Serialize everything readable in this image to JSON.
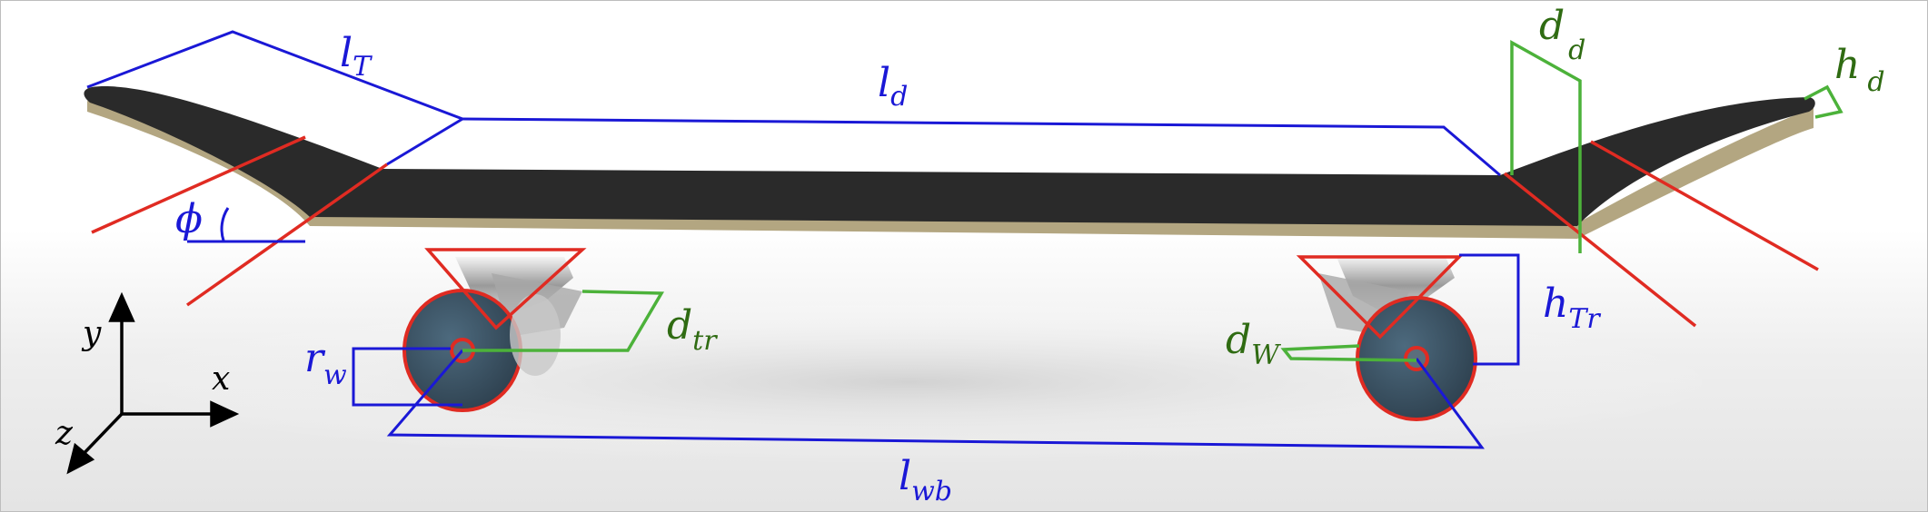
{
  "colors": {
    "blue": "#1a18d6",
    "green": "#4cb23a",
    "green_text": "#2f6b12",
    "red": "#e02b22",
    "deck_top": "#2a2a2a",
    "deck_side": "#b3a681",
    "wheel": "#3d5566",
    "axis": "#000000"
  },
  "labels": {
    "l_T": {
      "main": "l",
      "sub": "T"
    },
    "l_d": {
      "main": "l",
      "sub": "d"
    },
    "d_d": {
      "main": "d",
      "sub": "d"
    },
    "h_d": {
      "main": "h",
      "sub": "d"
    },
    "phi": {
      "main": "ϕ"
    },
    "d_tr": {
      "main": "d",
      "sub": "tr"
    },
    "r_w": {
      "main": "r",
      "sub": "w"
    },
    "d_W": {
      "main": "d",
      "sub": "W"
    },
    "h_Tr": {
      "main": "h",
      "sub": "Tr"
    },
    "l_wb": {
      "main": "l",
      "sub": "wb"
    }
  },
  "axes": {
    "x": "x",
    "y": "y",
    "z": "z"
  }
}
